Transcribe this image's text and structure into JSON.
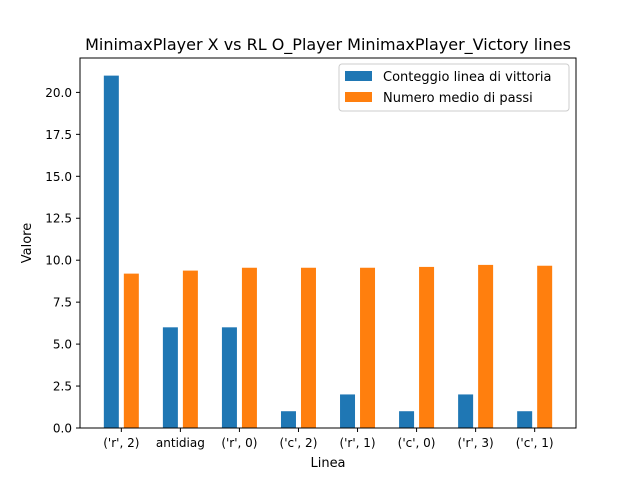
{
  "chart_data": {
    "type": "bar",
    "title": "MinimaxPlayer X vs RL O_Player MinimaxPlayer_Victory lines",
    "xlabel": "Linea",
    "ylabel": "Valore",
    "categories": [
      "('r', 2)",
      "antidiag",
      "('r', 0)",
      "('c', 2)",
      "('r', 1)",
      "('c', 0)",
      "('r', 3)",
      "('c', 1)"
    ],
    "series": [
      {
        "name": "Conteggio linea di vittoria",
        "color": "#1f77b4",
        "values": [
          21,
          6,
          6,
          1,
          2,
          1,
          2,
          1
        ]
      },
      {
        "name": "Numero medio di passi",
        "color": "#ff7f0e",
        "values": [
          9.2,
          9.38,
          9.55,
          9.55,
          9.55,
          9.6,
          9.72,
          9.67
        ]
      }
    ],
    "ylim": [
      0,
      22.05
    ],
    "yticks": [
      "0.0",
      "2.5",
      "5.0",
      "7.5",
      "10.0",
      "12.5",
      "15.0",
      "17.5",
      "20.0"
    ],
    "grid": false,
    "legend_position": "top-right"
  }
}
